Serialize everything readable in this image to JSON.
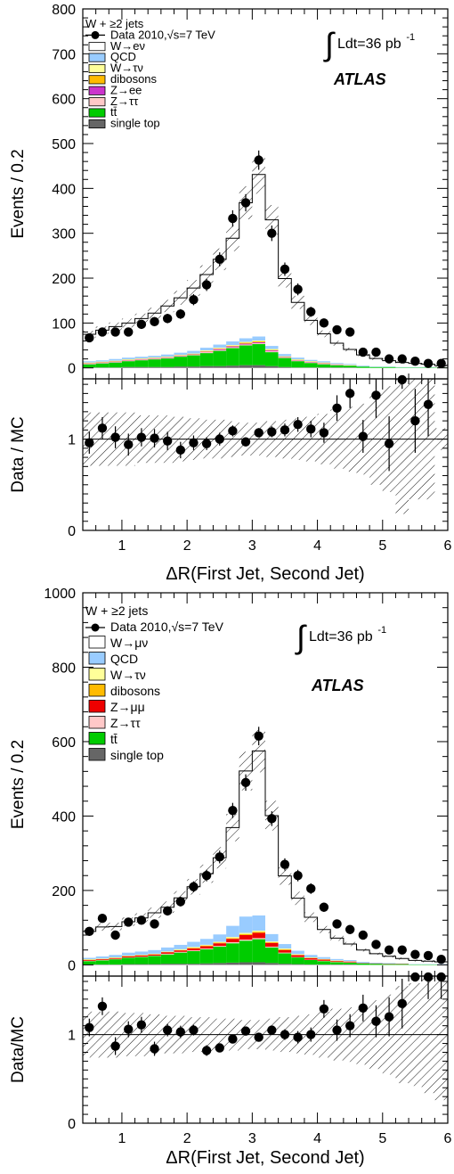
{
  "panels": [
    {
      "chart_data": {
        "type": "bar",
        "stacked": true,
        "ylabel": "Events / 0.2",
        "ylim": [
          0,
          800
        ],
        "yticks": [
          0,
          100,
          200,
          300,
          400,
          500,
          600,
          700,
          800
        ],
        "xlim": [
          0.4,
          6.0
        ],
        "bin_edges": [
          0.4,
          0.6,
          0.8,
          1.0,
          1.2,
          1.4,
          1.6,
          1.8,
          2.0,
          2.2,
          2.4,
          2.6,
          2.8,
          3.0,
          3.2,
          3.4,
          3.6,
          3.8,
          4.0,
          4.2,
          4.4,
          4.6,
          4.8,
          5.0,
          5.2,
          5.4,
          5.6,
          5.8,
          6.0
        ],
        "bin_centers": [
          0.5,
          0.7,
          0.9,
          1.1,
          1.3,
          1.5,
          1.7,
          1.9,
          2.1,
          2.3,
          2.5,
          2.7,
          2.9,
          3.1,
          3.3,
          3.5,
          3.7,
          3.9,
          4.1,
          4.3,
          4.5,
          4.7,
          4.9,
          5.1,
          5.3,
          5.5,
          5.7,
          5.9
        ],
        "series": [
          {
            "name": "single top",
            "color": "#666666",
            "values": [
              1,
              1,
              1,
              2,
              2,
              2,
              2,
              3,
              3,
              4,
              4,
              5,
              6,
              6,
              4,
              2,
              1,
              1,
              1,
              1,
              1,
              0,
              0,
              0,
              0,
              0,
              0,
              0
            ]
          },
          {
            "name": "tt̄",
            "color": "#00cc00",
            "values": [
              7,
              9,
              11,
              13,
              15,
              17,
              19,
              22,
              25,
              29,
              34,
              39,
              44,
              47,
              31,
              20,
              14,
              10,
              7,
              5,
              4,
              3,
              2,
              2,
              1,
              1,
              1,
              1
            ]
          },
          {
            "name": "Z→ττ",
            "color": "#ffc8c8",
            "values": [
              1,
              1,
              1,
              1,
              1,
              1,
              1,
              1,
              1,
              2,
              2,
              2,
              2,
              2,
              2,
              1,
              1,
              1,
              1,
              1,
              1,
              0,
              0,
              0,
              0,
              0,
              0,
              0
            ]
          },
          {
            "name": "Z→ee",
            "color": "#cc33cc",
            "values": [
              1,
              1,
              1,
              1,
              1,
              1,
              1,
              1,
              1,
              1,
              2,
              2,
              2,
              2,
              2,
              1,
              1,
              1,
              1,
              1,
              0,
              0,
              0,
              0,
              0,
              0,
              0,
              0
            ]
          },
          {
            "name": "dibosons",
            "color": "#ffbb00",
            "values": [
              1,
              1,
              1,
              1,
              1,
              1,
              1,
              1,
              1,
              1,
              1,
              1,
              2,
              2,
              1,
              1,
              1,
              1,
              1,
              0,
              0,
              0,
              0,
              0,
              0,
              0,
              0,
              0
            ]
          },
          {
            "name": "W→τν",
            "color": "#ffff99",
            "values": [
              1,
              1,
              1,
              1,
              1,
              1,
              1,
              1,
              1,
              2,
              2,
              2,
              2,
              2,
              2,
              1,
              1,
              1,
              1,
              1,
              1,
              0,
              0,
              0,
              0,
              0,
              0,
              0
            ]
          },
          {
            "name": "QCD",
            "color": "#99ccff",
            "values": [
              3,
              3,
              4,
              4,
              4,
              4,
              5,
              5,
              6,
              6,
              7,
              8,
              8,
              9,
              7,
              5,
              4,
              3,
              3,
              2,
              2,
              2,
              1,
              1,
              1,
              1,
              1,
              0
            ]
          },
          {
            "name": "W→eν",
            "color": "#ffffff",
            "values": [
              60,
              67,
              72,
              77,
              85,
              95,
              108,
              122,
              140,
              163,
              190,
              230,
              302,
              361,
              281,
              168,
              123,
              88,
              61,
              44,
              32,
              24,
              18,
              13,
              10,
              8,
              6,
              4
            ]
          }
        ],
        "data": {
          "name": "Data 2010,√s=7 TeV",
          "values": [
            67,
            80,
            80,
            80,
            97,
            103,
            110,
            120,
            152,
            185,
            242,
            333,
            368,
            463,
            300,
            220,
            175,
            125,
            100,
            85,
            80,
            35,
            35,
            20,
            20,
            15,
            10,
            10
          ]
        },
        "ratio": {
          "ylabel": "Data / MC",
          "ylim": [
            0,
            2
          ],
          "ytick_labels": [
            "0",
            "1"
          ],
          "values": [
            0.96,
            1.12,
            1.02,
            0.94,
            1.02,
            1.01,
            0.98,
            0.88,
            0.96,
            0.95,
            1.0,
            1.09,
            0.97,
            1.07,
            1.08,
            1.1,
            1.16,
            1.11,
            1.07,
            1.34,
            1.5,
            1.03,
            1.48,
            0.95,
            2.0,
            1.2,
            1.38,
            null
          ],
          "errors": [
            0.12,
            0.12,
            0.12,
            0.12,
            0.1,
            0.1,
            0.1,
            0.09,
            0.08,
            0.07,
            0.07,
            0.06,
            0.05,
            0.05,
            0.06,
            0.07,
            0.08,
            0.09,
            0.11,
            0.14,
            0.16,
            0.18,
            0.25,
            0.3,
            0.45,
            0.35,
            0.35,
            0
          ]
        },
        "xlabel": "ΔR(First Jet, Second Jet)",
        "xtick_labels": [
          "1",
          "2",
          "3",
          "4",
          "5",
          "6"
        ],
        "legend_title": "W + ≥2 jets",
        "lumi": "Ldt=36 pb",
        "lumi_exp": "-1",
        "experiment": "ATLAS"
      }
    },
    {
      "chart_data": {
        "type": "bar",
        "stacked": true,
        "ylabel": "Events / 0.2",
        "ylim": [
          0,
          1000
        ],
        "yticks": [
          0,
          200,
          400,
          600,
          800,
          1000
        ],
        "xlim": [
          0.4,
          6.0
        ],
        "bin_edges": [
          0.4,
          0.6,
          0.8,
          1.0,
          1.2,
          1.4,
          1.6,
          1.8,
          2.0,
          2.2,
          2.4,
          2.6,
          2.8,
          3.0,
          3.2,
          3.4,
          3.6,
          3.8,
          4.0,
          4.2,
          4.4,
          4.6,
          4.8,
          5.0,
          5.2,
          5.4,
          5.6,
          5.8,
          6.0
        ],
        "bin_centers": [
          0.5,
          0.7,
          0.9,
          1.1,
          1.3,
          1.5,
          1.7,
          1.9,
          2.1,
          2.3,
          2.5,
          2.7,
          2.9,
          3.1,
          3.3,
          3.5,
          3.7,
          3.9,
          4.1,
          4.3,
          4.5,
          4.7,
          4.9,
          5.1,
          5.3,
          5.5,
          5.7,
          5.9
        ],
        "series": [
          {
            "name": "single top",
            "color": "#666666",
            "values": [
              1,
              1,
              1,
              2,
              2,
              2,
              3,
              3,
              3,
              4,
              5,
              6,
              7,
              7,
              5,
              3,
              2,
              1,
              1,
              1,
              1,
              0,
              0,
              0,
              0,
              0,
              0,
              0
            ]
          },
          {
            "name": "tt̄",
            "color": "#00cc00",
            "values": [
              9,
              11,
              14,
              17,
              19,
              22,
              25,
              30,
              34,
              38,
              44,
              52,
              58,
              62,
              42,
              28,
              18,
              12,
              9,
              6,
              5,
              4,
              3,
              2,
              2,
              1,
              1,
              1
            ]
          },
          {
            "name": "Z→ττ",
            "color": "#ffc8c8",
            "values": [
              1,
              1,
              1,
              1,
              1,
              1,
              2,
              2,
              2,
              2,
              2,
              3,
              3,
              3,
              2,
              2,
              1,
              1,
              1,
              1,
              1,
              0,
              0,
              0,
              0,
              0,
              0,
              0
            ]
          },
          {
            "name": "Z→μμ",
            "color": "#ee0000",
            "values": [
              2,
              2,
              2,
              3,
              3,
              3,
              4,
              4,
              5,
              6,
              7,
              9,
              12,
              14,
              10,
              7,
              5,
              4,
              3,
              2,
              2,
              1,
              1,
              1,
              1,
              0,
              0,
              0
            ]
          },
          {
            "name": "dibosons",
            "color": "#ffbb00",
            "values": [
              1,
              1,
              1,
              1,
              1,
              1,
              1,
              1,
              2,
              2,
              2,
              2,
              3,
              3,
              2,
              2,
              1,
              1,
              1,
              1,
              0,
              0,
              0,
              0,
              0,
              0,
              0,
              0
            ]
          },
          {
            "name": "W→τν",
            "color": "#ffff99",
            "values": [
              1,
              1,
              1,
              1,
              1,
              1,
              1,
              2,
              2,
              2,
              2,
              3,
              3,
              3,
              2,
              2,
              2,
              1,
              1,
              1,
              1,
              0,
              0,
              0,
              0,
              0,
              0,
              0
            ]
          },
          {
            "name": "QCD",
            "color": "#99ccff",
            "values": [
              4,
              6,
              7,
              8,
              9,
              10,
              11,
              12,
              14,
              16,
              20,
              30,
              44,
              41,
              20,
              12,
              9,
              7,
              5,
              4,
              3,
              3,
              2,
              2,
              1,
              1,
              1,
              1
            ]
          },
          {
            "name": "W→μν",
            "color": "#ffffff",
            "values": [
              71,
              79,
              76,
              83,
              90,
              100,
              108,
              126,
              148,
              175,
              206,
              264,
              391,
              442,
              318,
              183,
              141,
              101,
              74,
              56,
              43,
              32,
              24,
              18,
              13,
              10,
              8,
              6
            ]
          }
        ],
        "data": {
          "name": "Data 2010,√s=7 TeV",
          "values": [
            90,
            125,
            80,
            115,
            120,
            110,
            145,
            170,
            210,
            240,
            290,
            415,
            490,
            615,
            393,
            270,
            240,
            205,
            155,
            110,
            95,
            80,
            55,
            40,
            40,
            28,
            25,
            15
          ]
        },
        "ratio": {
          "ylabel": "Data/MC",
          "ylim": [
            0,
            2
          ],
          "ytick_labels": [
            "0",
            "1"
          ],
          "values": [
            1.08,
            1.32,
            0.87,
            1.06,
            1.11,
            0.84,
            1.05,
            1.03,
            1.05,
            0.82,
            0.85,
            0.95,
            1.04,
            0.97,
            1.05,
            1.0,
            0.97,
            1.0,
            1.29,
            1.05,
            1.1,
            1.3,
            1.15,
            1.2,
            1.35,
            1.9,
            1.75,
            1.8
          ],
          "errors": [
            0.1,
            0.1,
            0.1,
            0.09,
            0.09,
            0.08,
            0.07,
            0.07,
            0.06,
            0.06,
            0.05,
            0.05,
            0.04,
            0.04,
            0.05,
            0.06,
            0.07,
            0.08,
            0.1,
            0.12,
            0.13,
            0.15,
            0.18,
            0.22,
            0.28,
            0.3,
            0.35,
            0.4
          ]
        },
        "xlabel": "ΔR(First Jet, Second Jet)",
        "xtick_labels": [
          "1",
          "2",
          "3",
          "4",
          "5",
          "6"
        ],
        "legend_title": "W + ≥2 jets",
        "lumi": "Ldt=36 pb",
        "lumi_exp": "-1",
        "experiment": "ATLAS"
      }
    }
  ]
}
